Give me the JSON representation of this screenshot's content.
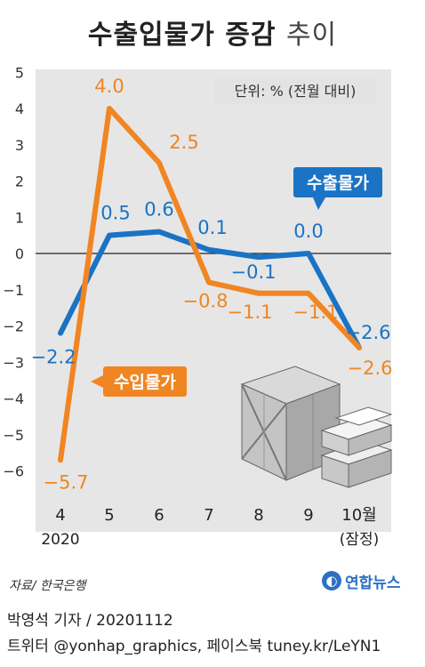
{
  "title_main": "수출입물가 증감",
  "title_suffix": "추이",
  "unit_label": "단위: % (전월 대비)",
  "source": "자료/ 한국은행",
  "logo": "연합뉴스",
  "credit_line1": "박영석 기자 / 20201112",
  "credit_line2": "트위터 @yonhap_graphics, 페이스북 tuney.kr/LeYN1",
  "colors": {
    "export": "#1a73c4",
    "import": "#f08522",
    "background": "#e6e6e6",
    "zero_line": "#222222"
  },
  "chart_data": {
    "type": "line",
    "categories": [
      "4",
      "5",
      "6",
      "7",
      "8",
      "9",
      "10월"
    ],
    "category_sublabels": [
      "2020",
      "",
      "",
      "",
      "",
      "",
      "(잠정)"
    ],
    "yticks": [
      "5",
      "4",
      "3",
      "2",
      "1",
      "0",
      "−1",
      "−2",
      "−3",
      "−4",
      "−5",
      "−6"
    ],
    "ylim": [
      -6.5,
      5
    ],
    "grid": false,
    "series": [
      {
        "name": "수출물가",
        "values": [
          -2.2,
          0.5,
          0.6,
          0.1,
          -0.1,
          0.0,
          -2.6
        ],
        "labels": [
          "−2.2",
          "0.5",
          "0.6",
          "0.1",
          "−0.1",
          "0.0",
          "−2.6"
        ]
      },
      {
        "name": "수입물가",
        "values": [
          -5.7,
          4.0,
          2.5,
          -0.8,
          -1.1,
          -1.1,
          -2.6
        ],
        "labels": [
          "−5.7",
          "4.0",
          "2.5",
          "−0.8",
          "−1.1",
          "−1.1",
          "−2.6"
        ]
      }
    ]
  }
}
